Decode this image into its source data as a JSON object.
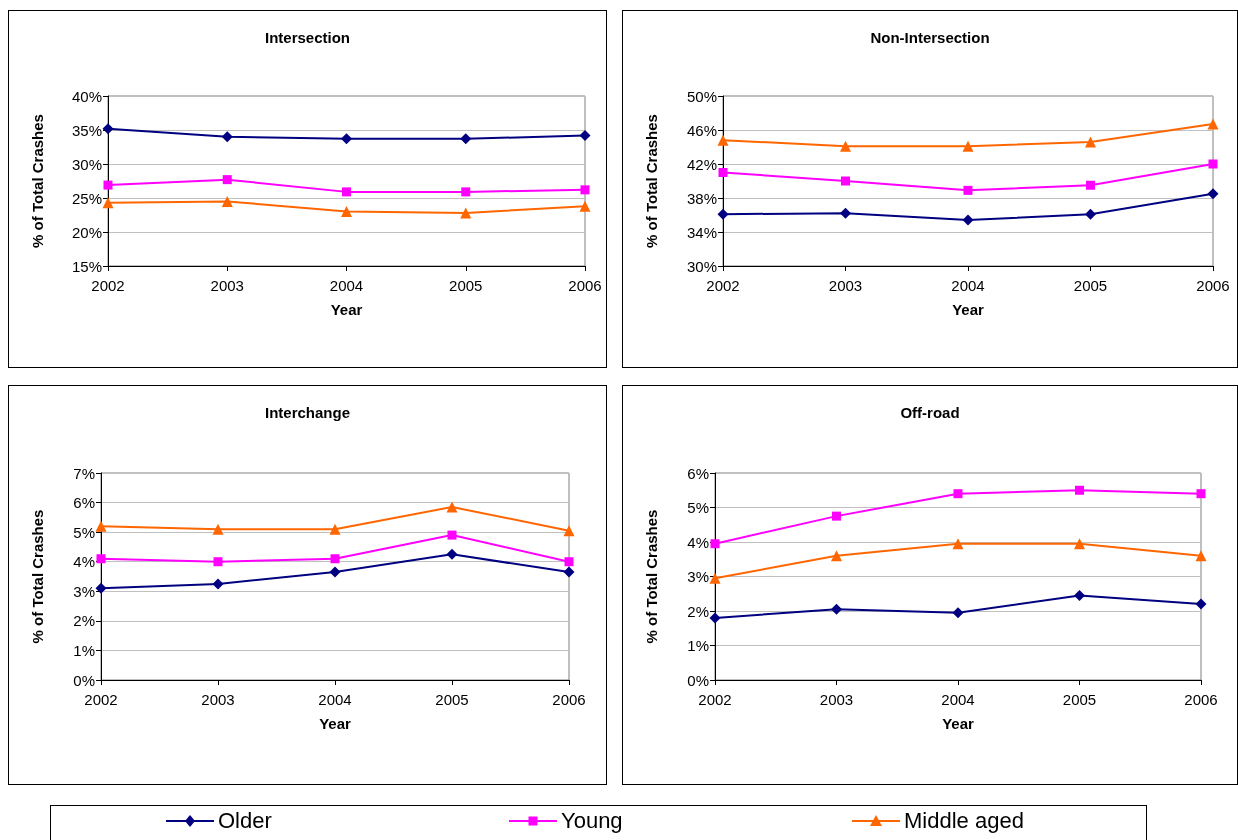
{
  "chart_data": [
    {
      "type": "line",
      "title": "Intersection",
      "xlabel": "Year",
      "ylabel": "% of Total Crashes",
      "categories": [
        "2002",
        "2003",
        "2004",
        "2005",
        "2006"
      ],
      "ylim": [
        15,
        40
      ],
      "yticks": [
        {
          "value": 15,
          "label": "15%"
        },
        {
          "value": 20,
          "label": "20%"
        },
        {
          "value": 25,
          "label": "25%"
        },
        {
          "value": 30,
          "label": "30%"
        },
        {
          "value": 35,
          "label": "35%"
        },
        {
          "value": 40,
          "label": "40%"
        }
      ],
      "grid": "y",
      "legend": "bottom",
      "series": [
        {
          "name": "Older",
          "color": "#000080",
          "marker": "diamond",
          "values": [
            35.2,
            34.0,
            33.7,
            33.7,
            34.2
          ]
        },
        {
          "name": "Young",
          "color": "#ff00ff",
          "marker": "square",
          "values": [
            26.9,
            27.7,
            25.9,
            25.9,
            26.2
          ]
        },
        {
          "name": "Middle aged",
          "color": "#ff6600",
          "marker": "triangle",
          "values": [
            24.3,
            24.5,
            23.0,
            22.8,
            23.8
          ]
        }
      ]
    },
    {
      "type": "line",
      "title": "Non-Intersection",
      "xlabel": "Year",
      "ylabel": "% of Total Crashes",
      "categories": [
        "2002",
        "2003",
        "2004",
        "2005",
        "2006"
      ],
      "ylim": [
        30,
        50
      ],
      "yticks": [
        {
          "value": 30,
          "label": "30%"
        },
        {
          "value": 34,
          "label": "34%"
        },
        {
          "value": 38,
          "label": "38%"
        },
        {
          "value": 42,
          "label": "42%"
        },
        {
          "value": 46,
          "label": "46%"
        },
        {
          "value": 50,
          "label": "50%"
        }
      ],
      "grid": "y",
      "series": [
        {
          "color": "#000080",
          "marker": "diamond",
          "values": [
            36.1,
            36.2,
            35.4,
            36.1,
            38.5
          ]
        },
        {
          "color": "#ff00ff",
          "marker": "square",
          "values": [
            41.0,
            40.0,
            38.9,
            39.5,
            42.0
          ]
        },
        {
          "color": "#ff6600",
          "marker": "triangle",
          "values": [
            44.8,
            44.1,
            44.1,
            44.6,
            46.7
          ]
        }
      ]
    },
    {
      "type": "line",
      "title": "Interchange",
      "xlabel": "Year",
      "ylabel": "% of Total Crashes",
      "categories": [
        "2002",
        "2003",
        "2004",
        "2005",
        "2006"
      ],
      "ylim": [
        0,
        7
      ],
      "yticks": [
        {
          "value": 0,
          "label": "0%"
        },
        {
          "value": 1,
          "label": "1%"
        },
        {
          "value": 2,
          "label": "2%"
        },
        {
          "value": 3,
          "label": "3%"
        },
        {
          "value": 4,
          "label": "4%"
        },
        {
          "value": 5,
          "label": "5%"
        },
        {
          "value": 6,
          "label": "6%"
        },
        {
          "value": 7,
          "label": "7%"
        }
      ],
      "grid": "y",
      "series": [
        {
          "color": "#000080",
          "marker": "diamond",
          "values": [
            3.1,
            3.25,
            3.65,
            4.25,
            3.65
          ]
        },
        {
          "color": "#ff00ff",
          "marker": "square",
          "values": [
            4.1,
            4.0,
            4.1,
            4.9,
            4.0
          ]
        },
        {
          "color": "#ff6600",
          "marker": "triangle",
          "values": [
            5.2,
            5.1,
            5.1,
            5.85,
            5.05
          ]
        }
      ]
    },
    {
      "type": "line",
      "title": "Off-road",
      "xlabel": "Year",
      "ylabel": "% of Total Crashes",
      "categories": [
        "2002",
        "2003",
        "2004",
        "2005",
        "2006"
      ],
      "ylim": [
        0,
        6
      ],
      "yticks": [
        {
          "value": 0,
          "label": "0%"
        },
        {
          "value": 1,
          "label": "1%"
        },
        {
          "value": 2,
          "label": "2%"
        },
        {
          "value": 3,
          "label": "3%"
        },
        {
          "value": 4,
          "label": "4%"
        },
        {
          "value": 5,
          "label": "5%"
        },
        {
          "value": 6,
          "label": "6%"
        }
      ],
      "grid": "y",
      "series": [
        {
          "color": "#000080",
          "marker": "diamond",
          "values": [
            1.8,
            2.05,
            1.95,
            2.45,
            2.2
          ]
        },
        {
          "color": "#ff00ff",
          "marker": "square",
          "values": [
            3.95,
            4.75,
            5.4,
            5.5,
            5.4
          ]
        },
        {
          "color": "#ff6600",
          "marker": "triangle",
          "values": [
            2.95,
            3.6,
            3.95,
            3.95,
            3.6
          ]
        }
      ]
    }
  ]
}
